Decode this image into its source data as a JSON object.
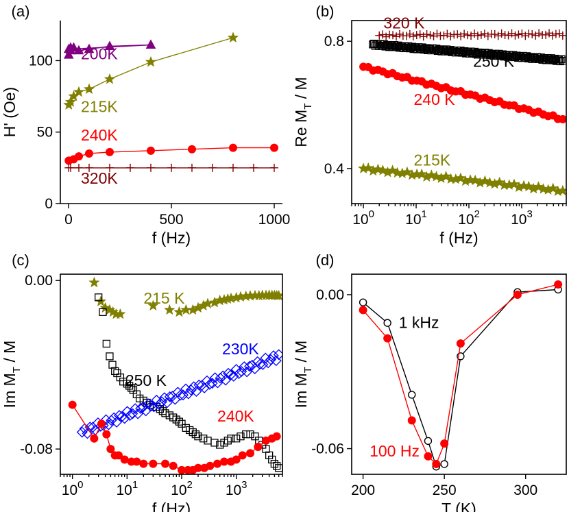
{
  "colors": {
    "200K": "#800080",
    "215K": "#808000",
    "240K": "#ff0000",
    "250K": "#000000",
    "320K": "#800000",
    "230K": "#0000ff",
    "1kHz": "#000000",
    "100Hz": "#ff0000"
  },
  "chart_data": [
    {
      "panel": "(a)",
      "type": "line",
      "xlabel": "f (Hz)",
      "ylabel": "H' (Oe)",
      "xscale": "linear",
      "xlim": [
        -40,
        1040
      ],
      "ylim": [
        0,
        128
      ],
      "xticks": [
        0,
        500,
        1000
      ],
      "xtick_labels": [
        "0",
        "500",
        "1000"
      ],
      "yticks": [
        0,
        50,
        100
      ],
      "ytick_labels": [
        "0",
        "50",
        "100"
      ],
      "series": [
        {
          "name": "200K",
          "marker": "triangle",
          "connected": true,
          "x": [
            1,
            10,
            25,
            50,
            100,
            200,
            400,
            1,
            10
          ],
          "y": [
            104,
            109,
            109,
            107,
            108,
            110,
            111,
            108,
            107
          ]
        },
        {
          "name": "215K",
          "marker": "star",
          "connected": true,
          "x": [
            1,
            10,
            25,
            50,
            100,
            200,
            400,
            800
          ],
          "y": [
            69,
            71,
            75,
            78,
            80,
            87,
            99,
            116
          ]
        },
        {
          "name": "240K",
          "marker": "circle",
          "connected": true,
          "x": [
            1,
            25,
            50,
            100,
            200,
            400,
            600,
            800,
            1000
          ],
          "y": [
            30,
            31,
            33,
            35,
            36,
            37,
            38,
            39,
            39
          ]
        },
        {
          "name": "320K",
          "marker": "plus",
          "connected": true,
          "x": [
            1,
            10,
            50,
            100,
            200,
            300,
            400,
            500,
            600,
            700,
            800,
            900,
            1000
          ],
          "y": [
            25,
            25,
            25,
            25,
            25,
            25,
            25,
            25,
            25,
            25,
            25,
            25,
            25
          ]
        }
      ],
      "annotations": [
        {
          "text": "200K",
          "x": 60,
          "y": 101,
          "series": "200K"
        },
        {
          "text": "215K",
          "x": 60,
          "y": 64,
          "series": "215K"
        },
        {
          "text": "240K",
          "x": 60,
          "y": 44,
          "series": "240K"
        },
        {
          "text": "320K",
          "x": 60,
          "y": 14,
          "series": "320K"
        }
      ]
    },
    {
      "panel": "(b)",
      "type": "scatter",
      "xlabel": "f (Hz)",
      "ylabel_main": "Re M",
      "ylabel_sub": "T",
      "ylabel_tail": " / M",
      "xscale": "log",
      "xlim": [
        0.6,
        7000
      ],
      "ylim": [
        0.29,
        0.865
      ],
      "xticks": [
        1,
        10,
        100,
        1000
      ],
      "xtick_labels": [
        [
          "10",
          "0"
        ],
        [
          "10",
          "1"
        ],
        [
          "10",
          "2"
        ],
        [
          "10",
          "3"
        ]
      ],
      "yticks": [
        0.4,
        0.8
      ],
      "ytick_labels": [
        "0.4",
        "0.8"
      ],
      "series": [
        {
          "name": "320 K",
          "marker": "plus",
          "x_start": 2,
          "x_end": 6000,
          "y_start": 0.818,
          "y_end": 0.822,
          "n": 55
        },
        {
          "name": "250 K",
          "marker": "square",
          "x_start": 1.5,
          "x_end": 6000,
          "y_start": 0.79,
          "y_end": 0.74,
          "n": 150
        },
        {
          "name": "240 K",
          "marker": "circle",
          "x_start": 1,
          "x_end": 6000,
          "y_start": 0.72,
          "y_end": 0.555,
          "n": 42
        },
        {
          "name": "215K",
          "marker": "star",
          "x_start": 1,
          "x_end": 6000,
          "y_start": 0.4,
          "y_end": 0.33,
          "n": 42
        }
      ],
      "annotations": [
        {
          "text": "320 K",
          "x": 2.4,
          "y": 0.84,
          "series": "320 K"
        },
        {
          "text": "250 K",
          "x": 120,
          "y": 0.72,
          "series": "250 K"
        },
        {
          "text": "240 K",
          "x": 9,
          "y": 0.6,
          "series": "240 K"
        },
        {
          "text": "215K",
          "x": 9,
          "y": 0.41,
          "series": "215K"
        }
      ]
    },
    {
      "panel": "(c)",
      "type": "scatter",
      "xlabel": "f (Hz)",
      "ylabel_main": "Im M",
      "ylabel_sub": "T",
      "ylabel_tail": " / M",
      "xscale": "log",
      "xlim": [
        0.6,
        7000
      ],
      "ylim": [
        -0.092,
        0.003
      ],
      "xticks": [
        1,
        10,
        100,
        1000
      ],
      "xtick_labels": [
        [
          "10",
          "0"
        ],
        [
          "10",
          "1"
        ],
        [
          "10",
          "2"
        ],
        [
          "10",
          "3"
        ]
      ],
      "yticks": [
        0.0,
        -0.08
      ],
      "ytick_labels": [
        "0.00",
        "-0.08"
      ],
      "series": [
        {
          "name": "215 K",
          "marker": "star",
          "x": [
            2.5,
            3.3,
            4.0,
            4.8,
            5.5,
            6.3,
            7.5,
            30,
            60,
            90,
            120,
            160,
            200,
            250,
            300,
            400,
            500,
            600,
            700,
            800,
            1000,
            1200,
            1500,
            1800,
            2200,
            2600,
            3000,
            3500,
            4000,
            4500,
            5000,
            5500,
            6000
          ],
          "y": [
            -0.001,
            -0.01,
            -0.013,
            -0.014,
            -0.015,
            -0.016,
            -0.016,
            -0.012,
            -0.014,
            -0.015,
            -0.014,
            -0.014,
            -0.013,
            -0.012,
            -0.011,
            -0.0105,
            -0.0095,
            -0.0092,
            -0.0088,
            -0.0085,
            -0.0082,
            -0.0078,
            -0.0075,
            -0.0073,
            -0.0072,
            -0.0072,
            -0.0071,
            -0.0071,
            -0.007,
            -0.0071,
            -0.0071,
            -0.0072,
            -0.0072
          ]
        },
        {
          "name": "250 K",
          "marker": "square",
          "x": [
            3,
            3.6,
            4.2,
            4.8,
            5.4,
            6,
            6.6,
            7.5,
            8.5,
            10,
            11,
            12,
            13,
            15,
            17,
            20,
            23,
            26,
            30,
            35,
            40,
            45,
            50,
            60,
            70,
            80,
            90,
            100,
            120,
            140,
            160,
            180,
            200,
            250,
            300,
            400,
            500,
            600,
            700,
            800,
            1000,
            1200,
            1500,
            1800,
            2200,
            2600,
            3000,
            3500,
            4000,
            4500,
            5000,
            5500,
            6000
          ],
          "y": [
            -0.008,
            -0.015,
            -0.03,
            -0.036,
            -0.04,
            -0.043,
            -0.044,
            -0.046,
            -0.048,
            -0.049,
            -0.05,
            -0.051,
            -0.052,
            -0.054,
            -0.056,
            -0.057,
            -0.058,
            -0.059,
            -0.06,
            -0.06,
            -0.061,
            -0.062,
            -0.063,
            -0.064,
            -0.065,
            -0.066,
            -0.067,
            -0.068,
            -0.07,
            -0.071,
            -0.072,
            -0.073,
            -0.074,
            -0.075,
            -0.076,
            -0.077,
            -0.078,
            -0.077,
            -0.076,
            -0.075,
            -0.075,
            -0.074,
            -0.073,
            -0.073,
            -0.074,
            -0.076,
            -0.078,
            -0.08,
            -0.083,
            -0.085,
            -0.087,
            -0.088,
            -0.089
          ]
        },
        {
          "name": "230K",
          "marker": "diamond",
          "x_start": 1.5,
          "x_end": 6000,
          "y_start": -0.072,
          "y_end": -0.036,
          "n": 75
        },
        {
          "name": "240K",
          "marker": "circle",
          "connected": true,
          "x": [
            1,
            2.5,
            3.4,
            4.2,
            5,
            6,
            7,
            9,
            12,
            15,
            20,
            30,
            50,
            70,
            100,
            130,
            160,
            200,
            260,
            330,
            450,
            600,
            800,
            1000,
            1300,
            1800,
            2500,
            3500,
            4500,
            5500
          ],
          "y": [
            -0.059,
            -0.075,
            -0.068,
            -0.073,
            -0.08,
            -0.083,
            -0.083,
            -0.085,
            -0.086,
            -0.086,
            -0.087,
            -0.087,
            -0.087,
            -0.088,
            -0.09,
            -0.09,
            -0.09,
            -0.089,
            -0.089,
            -0.088,
            -0.087,
            -0.086,
            -0.086,
            -0.085,
            -0.083,
            -0.082,
            -0.079,
            -0.076,
            -0.075,
            -0.074
          ]
        }
      ],
      "annotations": [
        {
          "text": "215 K",
          "x": 20,
          "y": -0.011,
          "series": "215 K"
        },
        {
          "text": "250 K",
          "x": 9.3,
          "y": -0.05,
          "series": "250 K"
        },
        {
          "text": "230K",
          "x": 550,
          "y": -0.035,
          "series": "230K"
        },
        {
          "text": "240K",
          "x": 450,
          "y": -0.067,
          "series": "240K"
        }
      ]
    },
    {
      "panel": "(d)",
      "type": "line",
      "xlabel": "T (K)",
      "ylabel_main": "Im M",
      "ylabel_sub": "T",
      "ylabel_tail": " / M",
      "xscale": "linear",
      "xlim": [
        193,
        325
      ],
      "ylim": [
        -0.07,
        0.008
      ],
      "xticks": [
        200,
        250,
        300
      ],
      "xtick_labels": [
        "200",
        "250",
        "300"
      ],
      "yticks": [
        0.0,
        -0.06
      ],
      "ytick_labels": [
        "0.00",
        "-0.06"
      ],
      "series": [
        {
          "name": "1 kHz",
          "marker": "open-circle",
          "connected": true,
          "x": [
            200,
            215,
            230,
            240,
            245,
            250,
            260,
            295,
            320
          ],
          "y": [
            -0.003,
            -0.011,
            -0.039,
            -0.057,
            -0.067,
            -0.066,
            -0.024,
            0.001,
            0.002
          ]
        },
        {
          "name": "100 Hz",
          "marker": "circle",
          "connected": true,
          "x": [
            200,
            215,
            230,
            240,
            245,
            250,
            260,
            295,
            320
          ],
          "y": [
            -0.006,
            -0.017,
            -0.049,
            -0.063,
            -0.066,
            -0.058,
            -0.019,
            0.0,
            0.004
          ]
        }
      ],
      "annotations": [
        {
          "text": "1 kHz",
          "x": 222,
          "y": -0.013,
          "series": "1 kHz"
        },
        {
          "text": "100 Hz",
          "x": 204,
          "y": -0.063,
          "series": "100 Hz"
        }
      ]
    }
  ]
}
